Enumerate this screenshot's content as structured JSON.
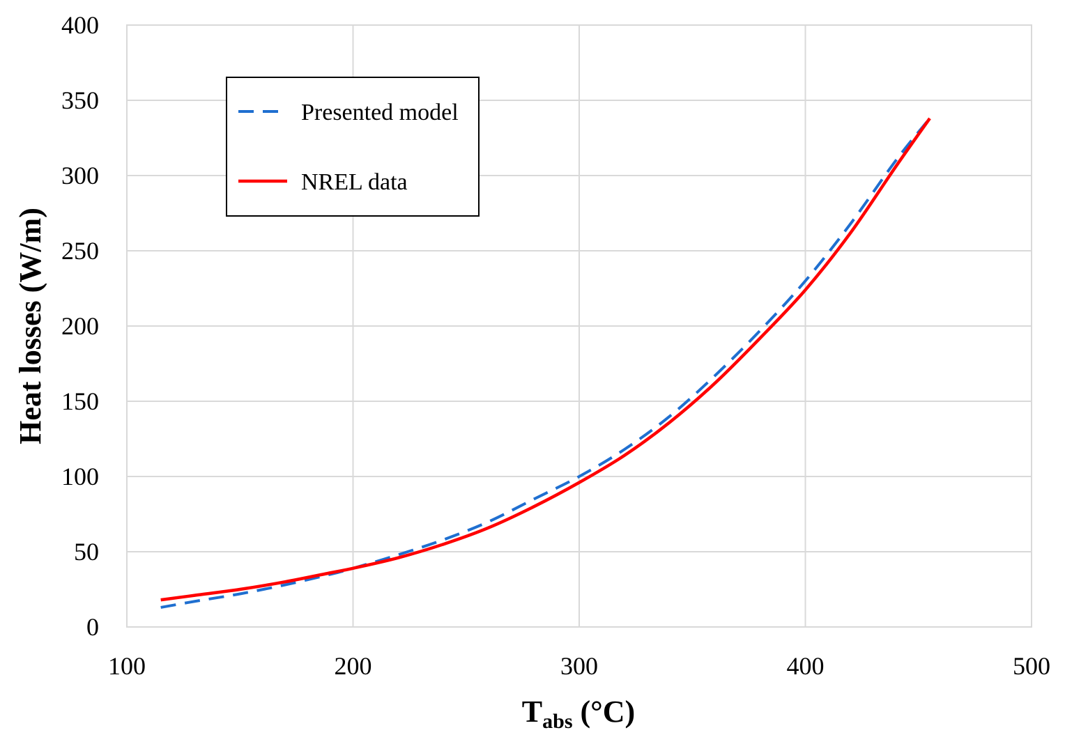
{
  "chart_data": {
    "type": "line",
    "title": "",
    "xlabel_main": "T",
    "xlabel_sub": "abs",
    "xlabel_unit": " (°C)",
    "ylabel": "Heat losses (W/m)",
    "xlim": [
      100,
      500
    ],
    "ylim": [
      0,
      400
    ],
    "xticks": [
      100,
      200,
      300,
      400,
      500
    ],
    "yticks": [
      0,
      50,
      100,
      150,
      200,
      250,
      300,
      350,
      400
    ],
    "grid": true,
    "legend_position": "top-left",
    "series": [
      {
        "name": "Presented model",
        "color": "#1f6fd0",
        "style": "dashed",
        "x": [
          115,
          130,
          150,
          170,
          190,
          200,
          220,
          240,
          260,
          280,
          300,
          320,
          340,
          360,
          380,
          400,
          420,
          440,
          455
        ],
        "y": [
          13,
          17,
          22,
          28,
          35,
          39,
          48,
          58,
          70,
          85,
          100,
          118,
          140,
          167,
          197,
          230,
          268,
          310,
          338
        ]
      },
      {
        "name": "NREL data",
        "color": "#ff0000",
        "style": "solid",
        "x": [
          115,
          130,
          150,
          170,
          190,
          200,
          220,
          240,
          260,
          280,
          300,
          320,
          340,
          360,
          380,
          400,
          420,
          440,
          455
        ],
        "y": [
          18,
          21,
          25,
          30,
          36,
          39,
          46,
          55,
          66,
          80,
          96,
          114,
          136,
          162,
          192,
          224,
          262,
          306,
          338
        ]
      }
    ]
  }
}
